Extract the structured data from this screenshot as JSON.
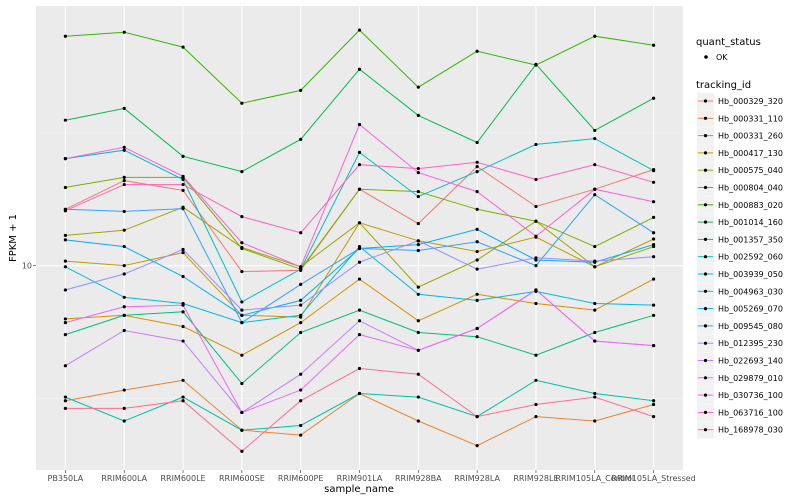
{
  "chart_data": {
    "type": "line",
    "title": "",
    "xlabel": "sample_name",
    "ylabel": "FPKM + 1",
    "y_scale": "log10",
    "y_ticks": [
      10
    ],
    "y_tick_labels": [
      "10"
    ],
    "ylim": [
      1.7,
      95
    ],
    "grid": true,
    "legend_position": "right",
    "categories": [
      "PB350LA",
      "RRIM600LA",
      "RRIM600LE",
      "RRIM600SE",
      "RRIM600PE",
      "RRIM901LA",
      "RRIM928BA",
      "RRIM928LA",
      "RRIM928LE",
      "RRIM105LA_Control",
      "RRIM105LA_Stressed"
    ],
    "point_legend": {
      "title": "quant_status",
      "entries": [
        "OK"
      ]
    },
    "color_legend_title": "tracking_id",
    "series": [
      {
        "name": "Hb_000329_320",
        "color": "#F8766D",
        "values": [
          16.3,
          20.9,
          19.2,
          9.5,
          9.6,
          19.4,
          14.4,
          23.6,
          16.7,
          19.4,
          23.0
        ]
      },
      {
        "name": "Hb_000331_110",
        "color": "#EA8331",
        "values": [
          3.1,
          3.4,
          3.7,
          2.4,
          2.3,
          3.3,
          2.6,
          2.1,
          2.7,
          2.6,
          3.0
        ]
      },
      {
        "name": "Hb_000331_260",
        "color": "#D89000",
        "values": [
          6.3,
          6.5,
          5.9,
          4.6,
          6.1,
          8.9,
          6.2,
          7.8,
          7.2,
          6.8,
          8.9
        ]
      },
      {
        "name": "Hb_000417_130",
        "color": "#C09B00",
        "values": [
          10.4,
          10.0,
          11.2,
          6.5,
          6.4,
          14.5,
          12.4,
          11.3,
          12.8,
          9.9,
          12.6
        ]
      },
      {
        "name": "Hb_000575_040",
        "color": "#A3A500",
        "values": [
          13.0,
          13.6,
          16.6,
          11.7,
          9.9,
          14.5,
          8.3,
          10.5,
          14.7,
          9.9,
          11.8
        ]
      },
      {
        "name": "Hb_000804_040",
        "color": "#7CAE00",
        "values": [
          19.7,
          21.5,
          21.5,
          11.6,
          9.7,
          19.4,
          19.0,
          16.3,
          14.7,
          11.8,
          15.2
        ]
      },
      {
        "name": "Hb_000883_020",
        "color": "#39B600",
        "values": [
          73.1,
          75.7,
          66.5,
          40.9,
          45.7,
          77.1,
          47.0,
          64.2,
          56.9,
          73.1,
          67.6
        ]
      },
      {
        "name": "Hb_001014_160",
        "color": "#00BB4E",
        "values": [
          35.3,
          39.1,
          25.8,
          22.6,
          29.9,
          54.9,
          36.8,
          29.1,
          57.3,
          32.3,
          42.7
        ]
      },
      {
        "name": "Hb_001357_350",
        "color": "#00BF7D",
        "values": [
          5.5,
          6.5,
          6.7,
          3.6,
          5.6,
          6.8,
          5.6,
          5.4,
          4.6,
          5.6,
          6.5
        ]
      },
      {
        "name": "Hb_002592_060",
        "color": "#00C1A3",
        "values": [
          3.2,
          2.6,
          3.2,
          2.4,
          2.5,
          3.3,
          3.2,
          2.7,
          3.7,
          3.3,
          3.1
        ]
      },
      {
        "name": "Hb_003939_050",
        "color": "#00BFC4",
        "values": [
          25.3,
          27.2,
          21.1,
          7.3,
          9.7,
          26.7,
          18.2,
          22.6,
          28.6,
          30.1,
          22.8
        ]
      },
      {
        "name": "Hb_004963_030",
        "color": "#00BAE0",
        "values": [
          9.9,
          7.6,
          7.2,
          6.1,
          6.5,
          11.8,
          7.8,
          7.4,
          8.0,
          7.2,
          7.1
        ]
      },
      {
        "name": "Hb_005269_070",
        "color": "#00B0F6",
        "values": [
          12.5,
          11.8,
          9.1,
          6.5,
          7.4,
          11.6,
          12.0,
          13.7,
          10.5,
          10.3,
          12.0
        ]
      },
      {
        "name": "Hb_009545_080",
        "color": "#35A2FF",
        "values": [
          16.3,
          16.0,
          16.4,
          6.1,
          8.5,
          11.6,
          11.4,
          12.3,
          10.0,
          18.5,
          13.3
        ]
      },
      {
        "name": "Hb_012395_230",
        "color": "#9590FF",
        "values": [
          8.1,
          9.3,
          11.5,
          6.8,
          7.1,
          10.3,
          12.4,
          9.7,
          10.7,
          10.4,
          10.8
        ]
      },
      {
        "name": "Hb_022693_140",
        "color": "#C77CFF",
        "values": [
          4.2,
          5.7,
          5.2,
          2.8,
          3.9,
          6.2,
          4.8,
          5.8,
          8.1,
          5.2,
          5.0
        ]
      },
      {
        "name": "Hb_029879_010",
        "color": "#E76BF3",
        "values": [
          6.1,
          7.0,
          7.1,
          2.8,
          3.4,
          5.5,
          4.8,
          5.8,
          8.1,
          5.2,
          5.0
        ]
      },
      {
        "name": "Hb_030736_100",
        "color": "#FA62DB",
        "values": [
          25.3,
          27.9,
          21.7,
          12.2,
          9.9,
          34.0,
          22.4,
          19.0,
          12.9,
          19.4,
          17.4
        ]
      },
      {
        "name": "Hb_063716_100",
        "color": "#FF62BC",
        "values": [
          16.1,
          20.2,
          20.2,
          15.3,
          13.3,
          24.0,
          23.2,
          24.5,
          21.1,
          24.0,
          20.6
        ]
      },
      {
        "name": "Hb_168978_030",
        "color": "#FF6C91",
        "values": [
          2.9,
          2.9,
          3.1,
          2.0,
          3.1,
          4.1,
          3.9,
          2.7,
          3.0,
          3.2,
          2.7
        ]
      }
    ]
  }
}
